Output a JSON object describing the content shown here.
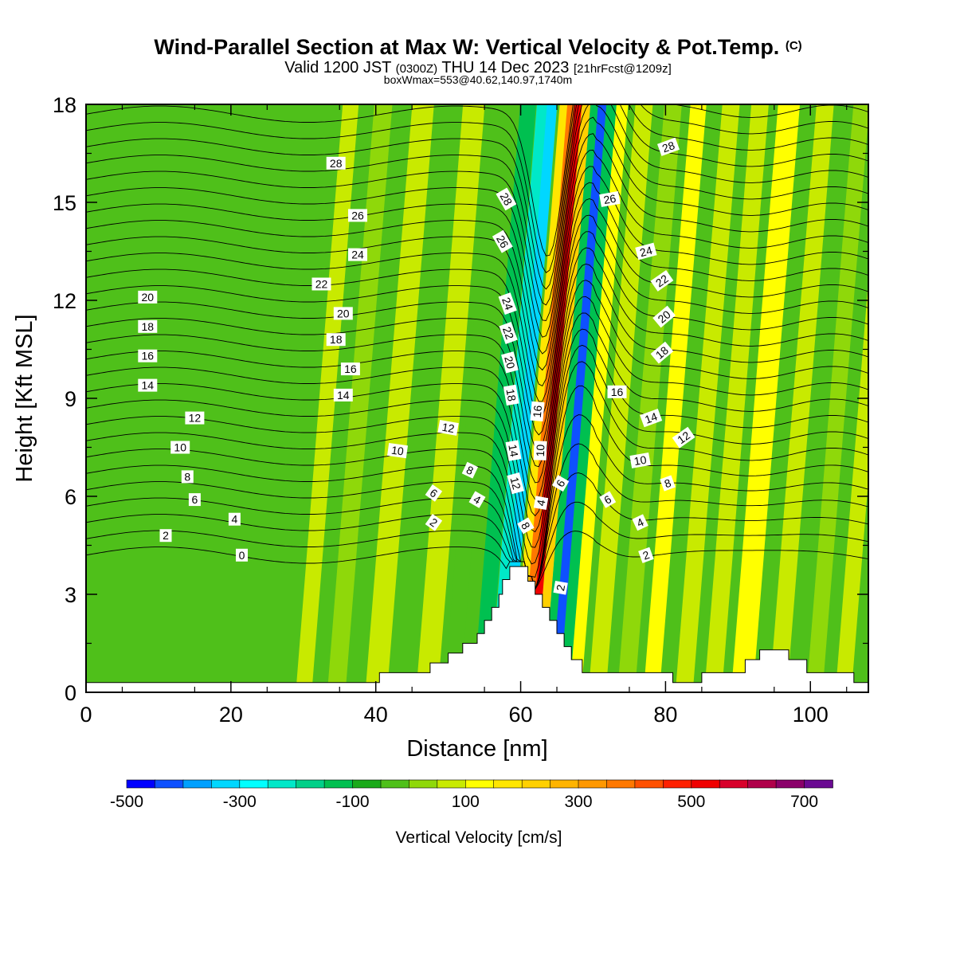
{
  "title": {
    "main": "Wind-Parallel Section at Max W: Vertical Velocity & Pot.Temp.",
    "main_mark": "(C)",
    "valid_a": "Valid 1200 JST",
    "valid_zulu": "(0300Z)",
    "valid_b": "THU 14 Dec 2023",
    "valid_fcst": "[21hrFcst@1209z]",
    "box": "boxWmax=553@40.62,140.97,1740m"
  },
  "colors": {
    "background": "#4fc01a",
    "terrain": "#ffffff",
    "contour": "#000000"
  },
  "chart_data": {
    "type": "heatmap",
    "xlabel": "Distance [nm]",
    "ylabel": "Height [Kft MSL]",
    "xlim": [
      0,
      108
    ],
    "ylim": [
      0,
      18
    ],
    "x_ticks": [
      0,
      20,
      40,
      60,
      80,
      100
    ],
    "x_tick_labels": [
      "0",
      "20",
      "40",
      "60",
      "80",
      "100"
    ],
    "y_ticks": [
      0,
      3,
      6,
      9,
      12,
      15,
      18
    ],
    "y_tick_labels": [
      "0",
      "3",
      "6",
      "9",
      "12",
      "15",
      "18"
    ],
    "grid": false,
    "field": "vertical velocity",
    "colorbar": {
      "label": "Vertical Velocity [cm/s]",
      "levels": [
        -500,
        -450,
        -400,
        -350,
        -300,
        -250,
        -200,
        -150,
        -100,
        -50,
        0,
        50,
        100,
        150,
        200,
        250,
        300,
        350,
        400,
        450,
        500,
        550,
        600,
        650,
        700,
        750
      ],
      "colors": [
        "#0000ff",
        "#0e50ff",
        "#00a0ff",
        "#00d7ff",
        "#00ffff",
        "#00e8c8",
        "#00d088",
        "#00c050",
        "#1aaa1a",
        "#4fc01a",
        "#8fd80a",
        "#c8ea00",
        "#ffff00",
        "#ffe600",
        "#ffd000",
        "#ffb400",
        "#ff9800",
        "#ff7800",
        "#ff5000",
        "#ff2000",
        "#f00000",
        "#d8002a",
        "#b0004a",
        "#8a006a",
        "#6a0a92"
      ],
      "tick_values": [
        -500,
        -300,
        -100,
        100,
        300,
        500,
        700
      ],
      "tick_labels": [
        "-500",
        "-300",
        "-100",
        "100",
        "300",
        "500",
        "700"
      ]
    },
    "bands": [
      {
        "x": 31.5,
        "width": 2.2,
        "value": 60
      },
      {
        "x": 36,
        "width": 2.5,
        "value": 40
      },
      {
        "x": 41.5,
        "width": 3,
        "value": 60
      },
      {
        "x": 48.5,
        "width": 3,
        "value": 80
      },
      {
        "x": 52,
        "width": 2.2,
        "value": -30
      },
      {
        "x": 56,
        "width": 2.2,
        "value": -120
      },
      {
        "x": 58,
        "width": 1.6,
        "value": -250
      },
      {
        "x": 59.3,
        "width": 1.4,
        "value": -320
      },
      {
        "x": 61,
        "width": 1.3,
        "value": 170
      },
      {
        "x": 62,
        "width": 1.2,
        "value": 380
      },
      {
        "x": 63,
        "width": 1.2,
        "value": 520
      },
      {
        "x": 64,
        "width": 1.2,
        "value": 200
      },
      {
        "x": 65.2,
        "width": 1.2,
        "value": -150
      },
      {
        "x": 66.3,
        "width": 1.3,
        "value": -420
      },
      {
        "x": 67.5,
        "width": 1.4,
        "value": -150
      },
      {
        "x": 69,
        "width": 1.6,
        "value": 140
      },
      {
        "x": 72,
        "width": 2.4,
        "value": 60
      },
      {
        "x": 76,
        "width": 2.4,
        "value": 30
      },
      {
        "x": 79.5,
        "width": 2.2,
        "value": 110
      },
      {
        "x": 84,
        "width": 2.4,
        "value": 50
      },
      {
        "x": 88,
        "width": 2.4,
        "value": 80
      },
      {
        "x": 92,
        "width": 3,
        "value": 130
      },
      {
        "x": 97,
        "width": 2.4,
        "value": 70
      },
      {
        "x": 102,
        "width": 2.2,
        "value": 40
      },
      {
        "x": 106,
        "width": 2.2,
        "value": 60
      }
    ],
    "terrain": [
      [
        0,
        0.3
      ],
      [
        40.5,
        0.3
      ],
      [
        40.5,
        0.6
      ],
      [
        47.5,
        0.6
      ],
      [
        47.5,
        0.9
      ],
      [
        50,
        0.9
      ],
      [
        50,
        1.2
      ],
      [
        52,
        1.2
      ],
      [
        52,
        1.5
      ],
      [
        54,
        1.5
      ],
      [
        54,
        1.8
      ],
      [
        55,
        1.8
      ],
      [
        55,
        2.2
      ],
      [
        56,
        2.2
      ],
      [
        56,
        2.6
      ],
      [
        57,
        2.6
      ],
      [
        57,
        3.0
      ],
      [
        57.5,
        3.0
      ],
      [
        57.5,
        3.45
      ],
      [
        58.5,
        3.45
      ],
      [
        58.5,
        3.85
      ],
      [
        61,
        3.85
      ],
      [
        61,
        3.4
      ],
      [
        62,
        3.4
      ],
      [
        62,
        3.0
      ],
      [
        63,
        3.0
      ],
      [
        63,
        2.6
      ],
      [
        64,
        2.6
      ],
      [
        64,
        2.2
      ],
      [
        65,
        2.2
      ],
      [
        65,
        1.8
      ],
      [
        66,
        1.8
      ],
      [
        66,
        1.4
      ],
      [
        67,
        1.4
      ],
      [
        67,
        1.0
      ],
      [
        68.5,
        1.0
      ],
      [
        68.5,
        0.6
      ],
      [
        81,
        0.6
      ],
      [
        81,
        0.3
      ],
      [
        85,
        0.3
      ],
      [
        85,
        0.6
      ],
      [
        91,
        0.6
      ],
      [
        91,
        1.0
      ],
      [
        93,
        1.0
      ],
      [
        93,
        1.3
      ],
      [
        97,
        1.3
      ],
      [
        97,
        1.0
      ],
      [
        99.5,
        1.0
      ],
      [
        99.5,
        0.6
      ],
      [
        106,
        0.6
      ],
      [
        106,
        0.3
      ],
      [
        108,
        0.3
      ]
    ],
    "contour_labels": [
      {
        "text": "28",
        "x": 34.5,
        "y": 16.2,
        "angle": 0
      },
      {
        "text": "26",
        "x": 37.5,
        "y": 14.6,
        "angle": 0
      },
      {
        "text": "24",
        "x": 37.5,
        "y": 13.4,
        "angle": 0
      },
      {
        "text": "22",
        "x": 32.5,
        "y": 12.5,
        "angle": 0
      },
      {
        "text": "20",
        "x": 35.5,
        "y": 11.6,
        "angle": 0
      },
      {
        "text": "18",
        "x": 34.5,
        "y": 10.8,
        "angle": 0
      },
      {
        "text": "16",
        "x": 36.5,
        "y": 9.9,
        "angle": 0
      },
      {
        "text": "14",
        "x": 35.5,
        "y": 9.1,
        "angle": 0
      },
      {
        "text": "20",
        "x": 8.5,
        "y": 12.1,
        "angle": 0
      },
      {
        "text": "18",
        "x": 8.5,
        "y": 11.2,
        "angle": 0
      },
      {
        "text": "16",
        "x": 8.5,
        "y": 10.3,
        "angle": 0
      },
      {
        "text": "14",
        "x": 8.5,
        "y": 9.4,
        "angle": 0
      },
      {
        "text": "12",
        "x": 15,
        "y": 8.4,
        "angle": 0
      },
      {
        "text": "10",
        "x": 13,
        "y": 7.5,
        "angle": 0
      },
      {
        "text": "8",
        "x": 14,
        "y": 6.6,
        "angle": 0
      },
      {
        "text": "6",
        "x": 15,
        "y": 5.9,
        "angle": 0
      },
      {
        "text": "4",
        "x": 20.5,
        "y": 5.3,
        "angle": 0
      },
      {
        "text": "2",
        "x": 11,
        "y": 4.8,
        "angle": 0
      },
      {
        "text": "0",
        "x": 21.5,
        "y": 4.2,
        "angle": 0
      },
      {
        "text": "10",
        "x": 43,
        "y": 7.4,
        "angle": 8
      },
      {
        "text": "12",
        "x": 50,
        "y": 8.1,
        "angle": 10
      },
      {
        "text": "8",
        "x": 53,
        "y": 6.8,
        "angle": 25
      },
      {
        "text": "6",
        "x": 48,
        "y": 6.1,
        "angle": 35
      },
      {
        "text": "4",
        "x": 54,
        "y": 5.9,
        "angle": 30
      },
      {
        "text": "2",
        "x": 48,
        "y": 5.2,
        "angle": 35
      },
      {
        "text": "28",
        "x": 58,
        "y": 15.1,
        "angle": 60
      },
      {
        "text": "26",
        "x": 57.5,
        "y": 13.8,
        "angle": 60
      },
      {
        "text": "24",
        "x": 58.2,
        "y": 11.9,
        "angle": 70
      },
      {
        "text": "22",
        "x": 58.3,
        "y": 11.0,
        "angle": 70
      },
      {
        "text": "20",
        "x": 58.5,
        "y": 10.1,
        "angle": 75
      },
      {
        "text": "18",
        "x": 58.7,
        "y": 9.1,
        "angle": 80
      },
      {
        "text": "14",
        "x": 59,
        "y": 7.4,
        "angle": 80
      },
      {
        "text": "12",
        "x": 59.3,
        "y": 6.4,
        "angle": 75
      },
      {
        "text": "8",
        "x": 60.7,
        "y": 5.1,
        "angle": 60
      },
      {
        "text": "16",
        "x": 62.3,
        "y": 8.6,
        "angle": -85
      },
      {
        "text": "10",
        "x": 62.7,
        "y": 7.4,
        "angle": -88
      },
      {
        "text": "4",
        "x": 62.8,
        "y": 5.8,
        "angle": -80
      },
      {
        "text": "6",
        "x": 65.5,
        "y": 6.4,
        "angle": -60
      },
      {
        "text": "2",
        "x": 65.5,
        "y": 3.2,
        "angle": -80
      },
      {
        "text": "28",
        "x": 80.4,
        "y": 16.7,
        "angle": -20
      },
      {
        "text": "26",
        "x": 72.3,
        "y": 15.1,
        "angle": -10
      },
      {
        "text": "24",
        "x": 77.3,
        "y": 13.5,
        "angle": -15
      },
      {
        "text": "22",
        "x": 79.5,
        "y": 12.6,
        "angle": -35
      },
      {
        "text": "20",
        "x": 79.8,
        "y": 11.5,
        "angle": -40
      },
      {
        "text": "18",
        "x": 79.5,
        "y": 10.4,
        "angle": -40
      },
      {
        "text": "16",
        "x": 73.3,
        "y": 9.2,
        "angle": 0
      },
      {
        "text": "14",
        "x": 78,
        "y": 8.4,
        "angle": -20
      },
      {
        "text": "12",
        "x": 82.5,
        "y": 7.8,
        "angle": -35
      },
      {
        "text": "10",
        "x": 76.5,
        "y": 7.1,
        "angle": -10
      },
      {
        "text": "8",
        "x": 80.3,
        "y": 6.4,
        "angle": -20
      },
      {
        "text": "6",
        "x": 72,
        "y": 5.9,
        "angle": -30
      },
      {
        "text": "4",
        "x": 76.5,
        "y": 5.2,
        "angle": -25
      },
      {
        "text": "2",
        "x": 77.3,
        "y": 4.2,
        "angle": -20
      }
    ]
  }
}
